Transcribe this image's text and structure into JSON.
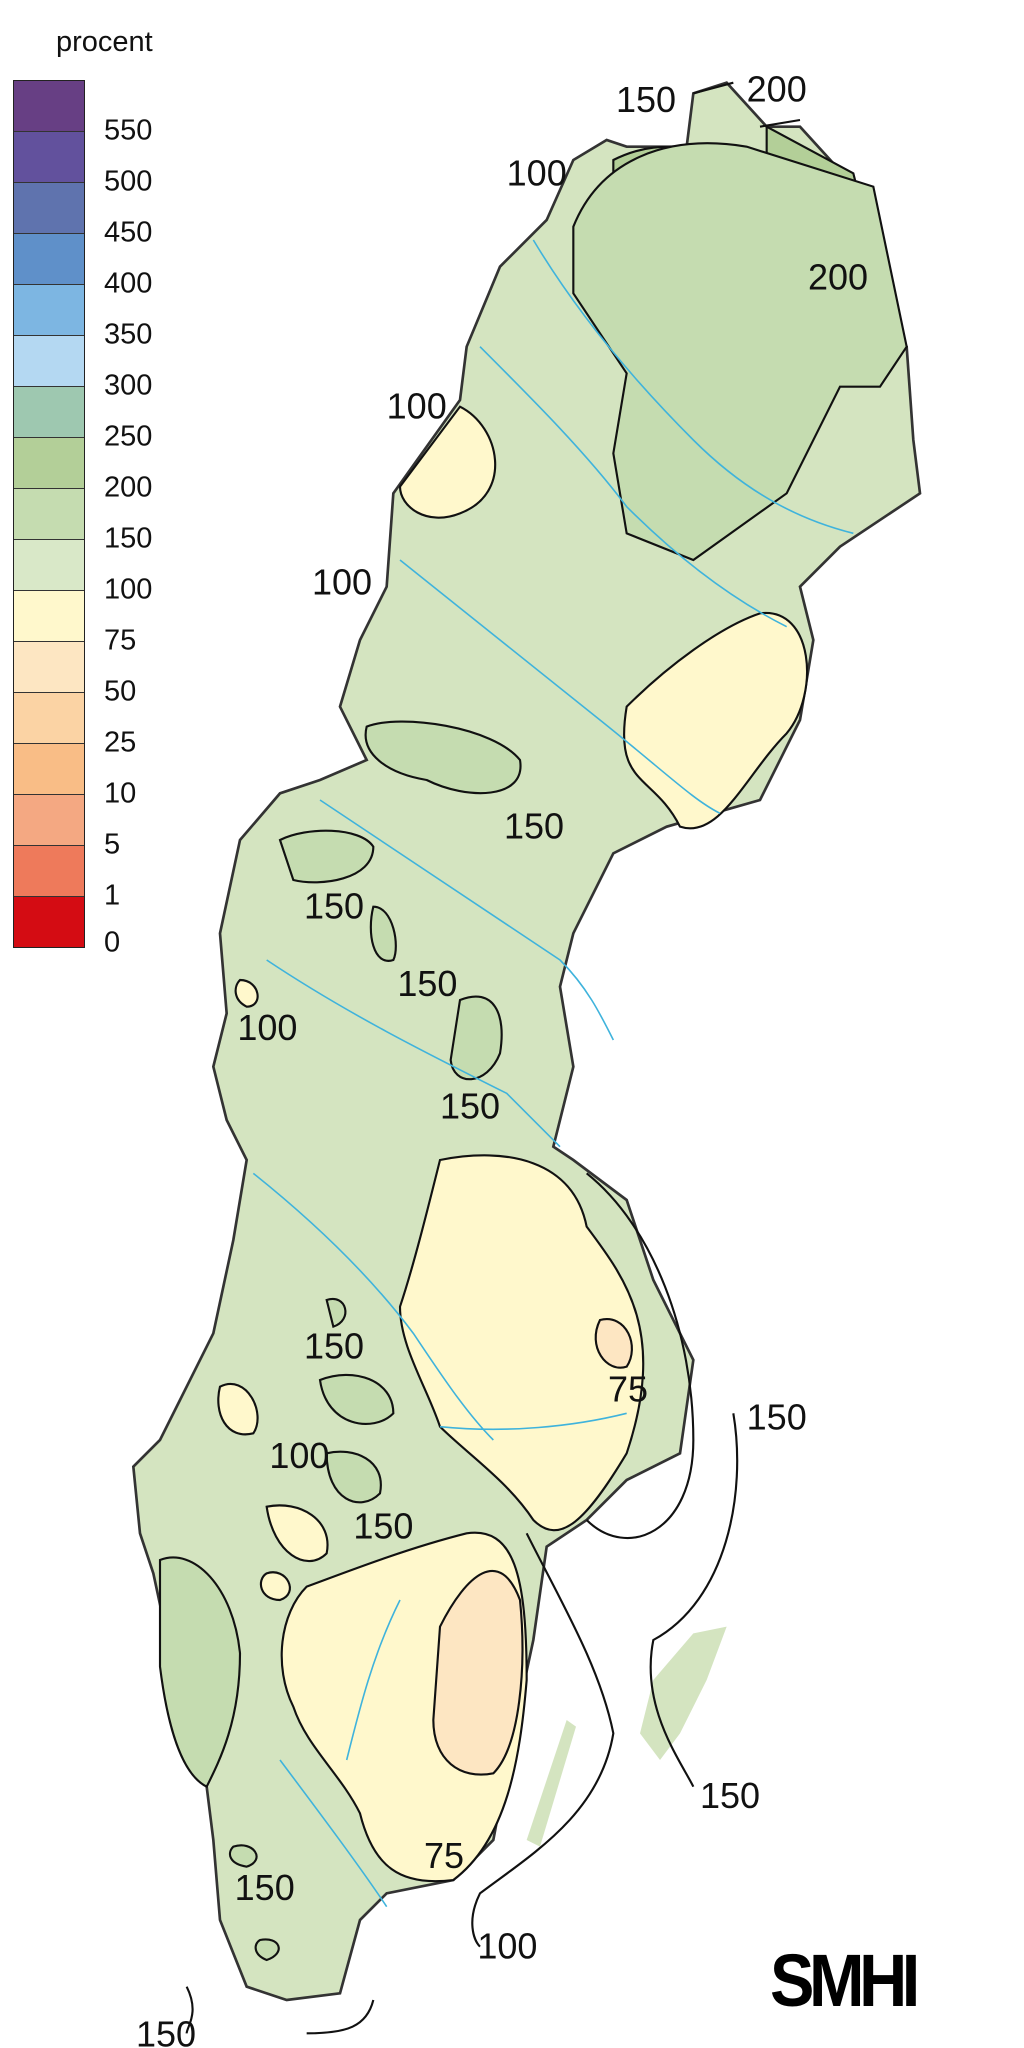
{
  "legend": {
    "title": "procent",
    "colors": [
      "#673f84",
      "#62519d",
      "#5f73ae",
      "#5f90c9",
      "#7db6e2",
      "#b4d8f2",
      "#9ec8b0",
      "#b3cf98",
      "#c5dcb0",
      "#d9e8c8",
      "#fff8cc",
      "#fde6c2",
      "#fbd3a4",
      "#f9bd86",
      "#f4a882",
      "#ee7a5b",
      "#d40c13"
    ],
    "ticks": [
      "550",
      "500",
      "450",
      "400",
      "350",
      "300",
      "250",
      "200",
      "150",
      "100",
      "75",
      "50",
      "25",
      "10",
      "5",
      "1",
      "0"
    ]
  },
  "map": {
    "base_color": "#d4e4c0",
    "river_color": "#3fb3dc",
    "contour_labels": [
      "150",
      "200",
      "100",
      "200",
      "100",
      "100",
      "150",
      "150",
      "150",
      "100",
      "150",
      "150",
      "75",
      "150",
      "100",
      "150",
      "150",
      "75",
      "150",
      "100",
      "150"
    ]
  },
  "logo": "SMHI"
}
